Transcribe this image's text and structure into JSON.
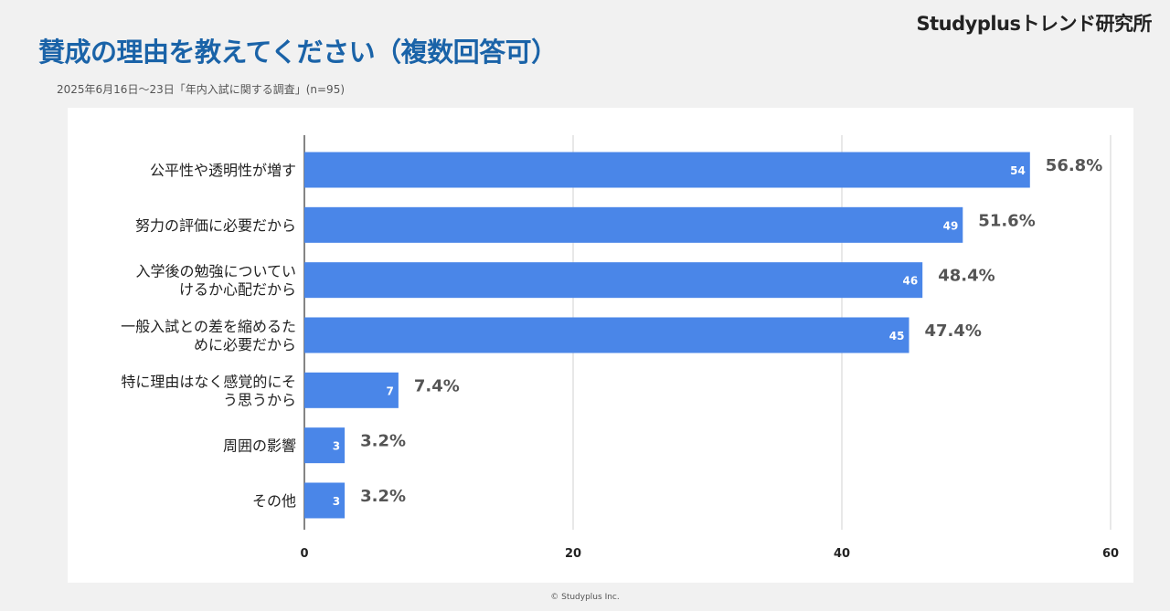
{
  "header": {
    "brand": "Studyplusトレンド研究所",
    "title": "賛成の理由を教えてください（複数回答可）",
    "subtitle": "2025年6月16日～23日「年内入試に関する調査」(n=95)"
  },
  "footer": {
    "copyright": "© Studyplus Inc."
  },
  "chart_data": {
    "type": "bar",
    "orientation": "horizontal",
    "categories": [
      [
        "公平性や透明性が増す"
      ],
      [
        "努力の評価に必要だから"
      ],
      [
        "入学後の勉強についてい",
        "けるか心配だから"
      ],
      [
        "一般入試との差を縮めるた",
        "めに必要だから"
      ],
      [
        "特に理由はなく感覚的にそ",
        "う思うから"
      ],
      [
        "周囲の影響"
      ],
      [
        "その他"
      ]
    ],
    "values": [
      54,
      49,
      46,
      45,
      7,
      3,
      3
    ],
    "percent_labels": [
      "56.8%",
      "51.6%",
      "48.4%",
      "47.4%",
      "7.4%",
      "3.2%",
      "3.2%"
    ],
    "xlim": [
      0,
      60
    ],
    "xticks": [
      0,
      20,
      40,
      60
    ],
    "grid": true,
    "bar_color": "#4a86e8"
  }
}
